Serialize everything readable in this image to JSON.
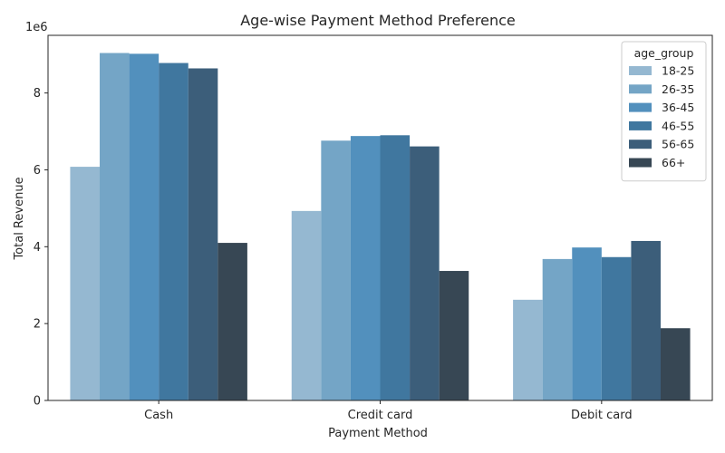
{
  "chart_data": {
    "type": "bar",
    "title": "Age-wise Payment Method Preference",
    "xlabel": "Payment Method",
    "ylabel": "Total Revenue",
    "scale_note": "1e6",
    "categories": [
      "Cash",
      "Credit card",
      "Debit card"
    ],
    "ylim": [
      0,
      9500000
    ],
    "yticks": [
      0,
      2000000,
      4000000,
      6000000,
      8000000
    ],
    "ytick_labels": [
      "0",
      "2",
      "4",
      "6",
      "8"
    ],
    "legend": {
      "title": "age_group",
      "position": "top-right"
    },
    "series": [
      {
        "name": "18-25",
        "color": "#95b8d1",
        "values": [
          6080000,
          4930000,
          2620000
        ]
      },
      {
        "name": "26-35",
        "color": "#74a5c6",
        "values": [
          9040000,
          6760000,
          3680000
        ]
      },
      {
        "name": "36-45",
        "color": "#5290bd",
        "values": [
          9020000,
          6880000,
          3980000
        ]
      },
      {
        "name": "46-55",
        "color": "#40779f",
        "values": [
          8780000,
          6900000,
          3730000
        ]
      },
      {
        "name": "56-65",
        "color": "#3c5e7a",
        "values": [
          8640000,
          6610000,
          4150000
        ]
      },
      {
        "name": "66+",
        "color": "#374754",
        "values": [
          4100000,
          3370000,
          1880000
        ]
      }
    ]
  }
}
